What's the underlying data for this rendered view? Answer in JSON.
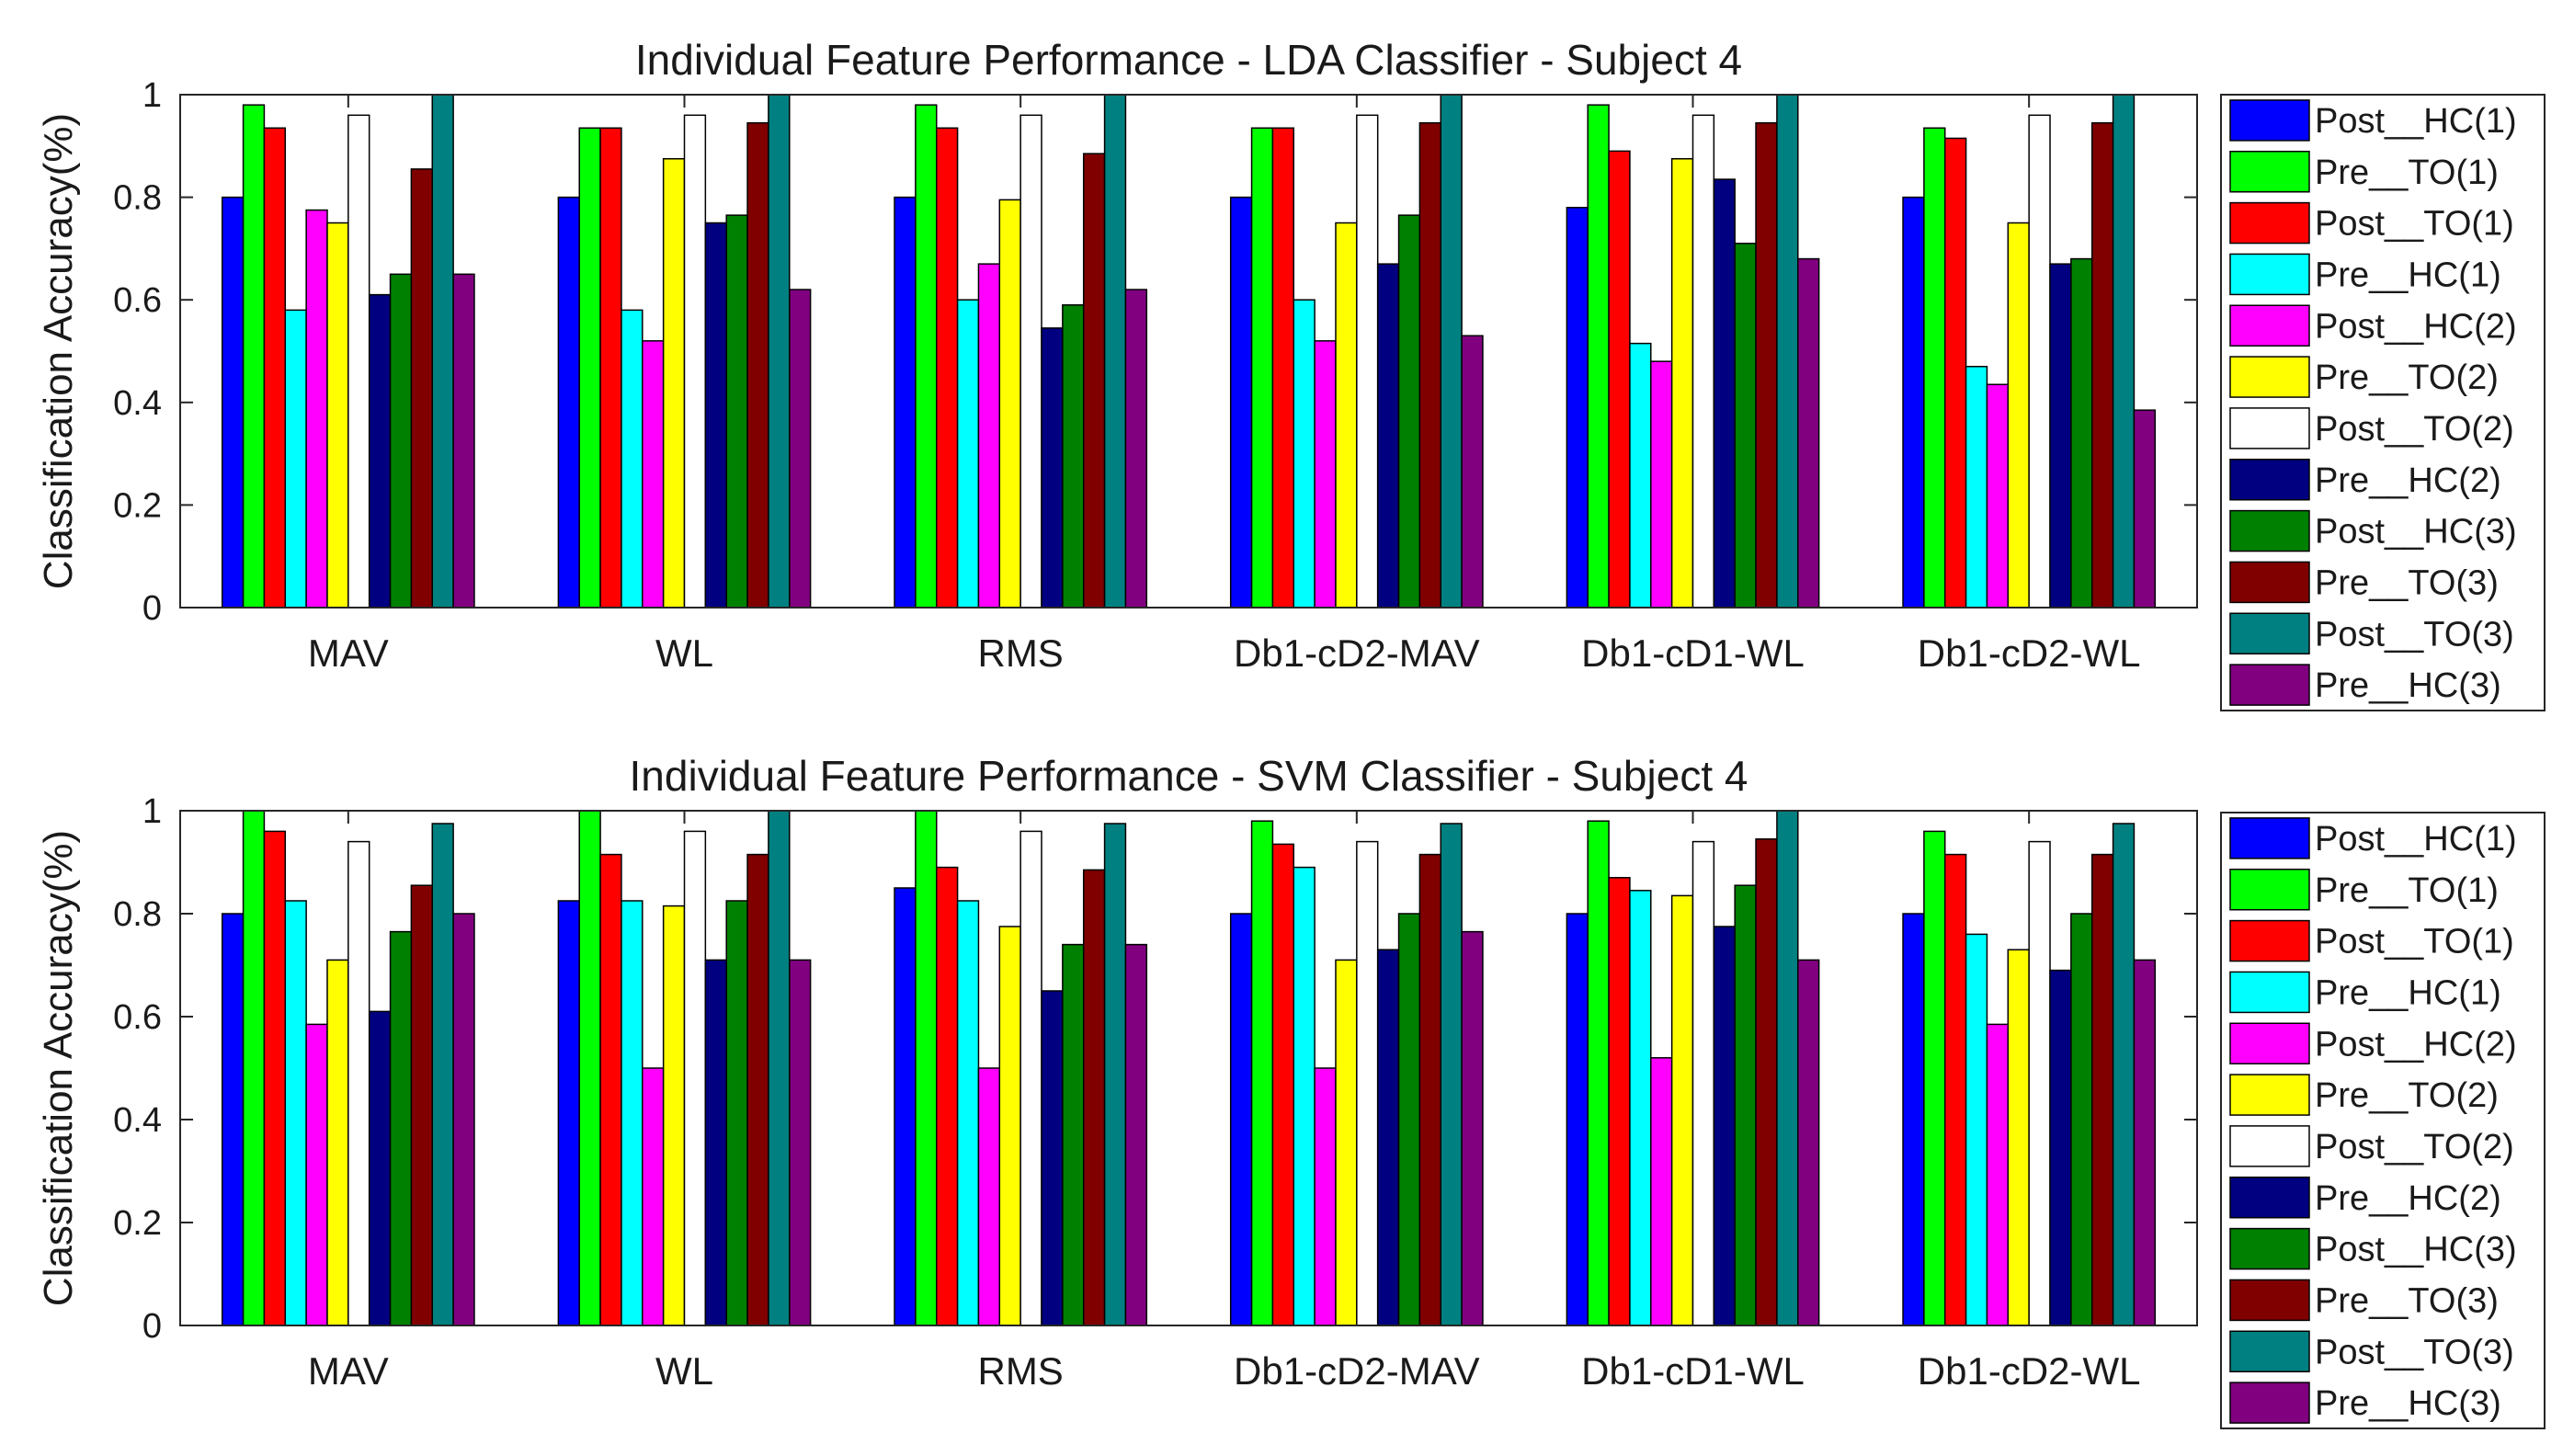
{
  "chart_data": [
    {
      "type": "bar",
      "title": "Individual Feature Performance - LDA Classifier - Subject 4",
      "xlabel": "",
      "ylabel": "Classification Accuracy(%)",
      "ylim": [
        0,
        1
      ],
      "yticks": [
        "0",
        "0.2",
        "0.4",
        "0.6",
        "0.8",
        "1"
      ],
      "legend_position": "outside-right",
      "categories": [
        "MAV",
        "WL",
        "RMS",
        "Db1-cD2-MAV",
        "Db1-cD1-WL",
        "Db1-cD2-WL"
      ],
      "series": [
        {
          "name": "Post__HC(1)",
          "color": "#0000ff",
          "values": [
            0.8,
            0.8,
            0.8,
            0.8,
            0.78,
            0.8
          ]
        },
        {
          "name": "Pre__TO(1)",
          "color": "#00ff00",
          "values": [
            0.98,
            0.935,
            0.98,
            0.935,
            0.98,
            0.935
          ]
        },
        {
          "name": "Post__TO(1)",
          "color": "#ff0000",
          "values": [
            0.935,
            0.935,
            0.935,
            0.935,
            0.89,
            0.915
          ]
        },
        {
          "name": "Pre__HC(1)",
          "color": "#00ffff",
          "values": [
            0.58,
            0.58,
            0.6,
            0.6,
            0.515,
            0.47
          ]
        },
        {
          "name": "Post__HC(2)",
          "color": "#ff00ff",
          "values": [
            0.775,
            0.52,
            0.67,
            0.52,
            0.48,
            0.435
          ]
        },
        {
          "name": "Pre__TO(2)",
          "color": "#ffff00",
          "values": [
            0.75,
            0.875,
            0.795,
            0.75,
            0.875,
            0.75
          ]
        },
        {
          "name": "Post__TO(2)",
          "color": "#ffffff",
          "values": [
            0.96,
            0.96,
            0.96,
            0.96,
            0.96,
            0.96
          ]
        },
        {
          "name": "Pre__HC(2)",
          "color": "#000080",
          "values": [
            0.61,
            0.75,
            0.545,
            0.67,
            0.835,
            0.67
          ]
        },
        {
          "name": "Post__HC(3)",
          "color": "#008000",
          "values": [
            0.65,
            0.765,
            0.59,
            0.765,
            0.71,
            0.68
          ]
        },
        {
          "name": "Pre__TO(3)",
          "color": "#800000",
          "values": [
            0.855,
            0.945,
            0.885,
            0.945,
            0.945,
            0.945
          ]
        },
        {
          "name": "Post__TO(3)",
          "color": "#008080",
          "values": [
            1.0,
            1.0,
            1.0,
            1.0,
            1.0,
            1.0
          ]
        },
        {
          "name": "Pre__HC(3)",
          "color": "#800080",
          "values": [
            0.65,
            0.62,
            0.62,
            0.53,
            0.68,
            0.385
          ]
        }
      ]
    },
    {
      "type": "bar",
      "title": "Individual Feature Performance - SVM Classifier - Subject 4",
      "xlabel": "",
      "ylabel": "Classification Accuracy(%)",
      "ylim": [
        0,
        1
      ],
      "yticks": [
        "0",
        "0.2",
        "0.4",
        "0.6",
        "0.8",
        "1"
      ],
      "legend_position": "outside-right",
      "categories": [
        "MAV",
        "WL",
        "RMS",
        "Db1-cD2-MAV",
        "Db1-cD1-WL",
        "Db1-cD2-WL"
      ],
      "series": [
        {
          "name": "Post__HC(1)",
          "color": "#0000ff",
          "values": [
            0.8,
            0.825,
            0.85,
            0.8,
            0.8,
            0.8
          ]
        },
        {
          "name": "Pre__TO(1)",
          "color": "#00ff00",
          "values": [
            1.0,
            1.0,
            1.0,
            0.98,
            0.98,
            0.96
          ]
        },
        {
          "name": "Post__TO(1)",
          "color": "#ff0000",
          "values": [
            0.96,
            0.915,
            0.89,
            0.935,
            0.87,
            0.915
          ]
        },
        {
          "name": "Pre__HC(1)",
          "color": "#00ffff",
          "values": [
            0.825,
            0.825,
            0.825,
            0.89,
            0.845,
            0.76
          ]
        },
        {
          "name": "Post__HC(2)",
          "color": "#ff00ff",
          "values": [
            0.585,
            0.5,
            0.5,
            0.5,
            0.52,
            0.585
          ]
        },
        {
          "name": "Pre__TO(2)",
          "color": "#ffff00",
          "values": [
            0.71,
            0.815,
            0.775,
            0.71,
            0.835,
            0.73
          ]
        },
        {
          "name": "Post__TO(2)",
          "color": "#ffffff",
          "values": [
            0.94,
            0.96,
            0.96,
            0.94,
            0.94,
            0.94
          ]
        },
        {
          "name": "Pre__HC(2)",
          "color": "#000080",
          "values": [
            0.61,
            0.71,
            0.65,
            0.73,
            0.775,
            0.69
          ]
        },
        {
          "name": "Post__HC(3)",
          "color": "#008000",
          "values": [
            0.765,
            0.825,
            0.74,
            0.8,
            0.855,
            0.8
          ]
        },
        {
          "name": "Pre__TO(3)",
          "color": "#800000",
          "values": [
            0.855,
            0.915,
            0.885,
            0.915,
            0.945,
            0.915
          ]
        },
        {
          "name": "Post__TO(3)",
          "color": "#008080",
          "values": [
            0.975,
            1.0,
            0.975,
            0.975,
            1.0,
            0.975
          ]
        },
        {
          "name": "Pre__HC(3)",
          "color": "#800080",
          "values": [
            0.8,
            0.71,
            0.74,
            0.765,
            0.71,
            0.71
          ]
        }
      ]
    }
  ]
}
